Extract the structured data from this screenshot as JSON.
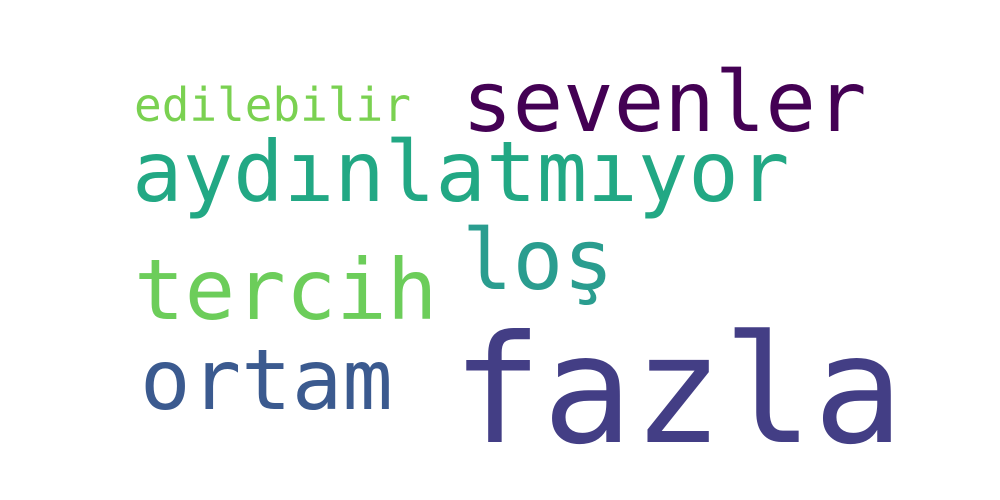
{
  "words": [
    {
      "text": "edilebilir",
      "color": "#7ad151"
    },
    {
      "text": "sevenler",
      "color": "#440154"
    },
    {
      "text": "aydınlatmıyor",
      "color": "#22a884"
    },
    {
      "text": "loş",
      "color": "#2a9d8f"
    },
    {
      "text": "tercih",
      "color": "#6ccd5a"
    },
    {
      "text": "ortam",
      "color": "#3b5a8f"
    },
    {
      "text": "fazla",
      "color": "#433e85"
    }
  ]
}
